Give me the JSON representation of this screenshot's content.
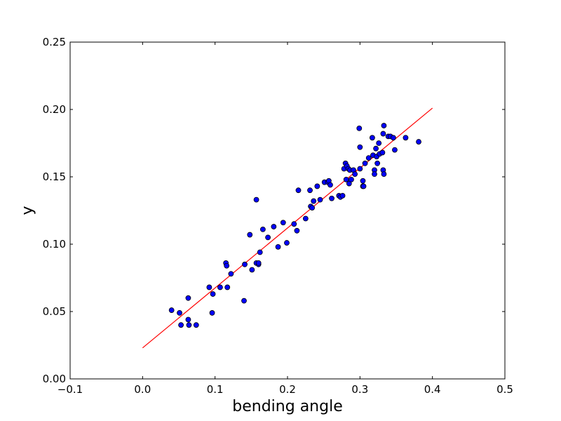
{
  "chart_data": {
    "type": "scatter",
    "title": "",
    "xlabel": "bending angle",
    "ylabel": "y",
    "xlim": [
      -0.1,
      0.5
    ],
    "ylim": [
      0.0,
      0.25
    ],
    "xticks": [
      -0.1,
      0.0,
      0.1,
      0.2,
      0.3,
      0.4,
      0.5
    ],
    "yticks": [
      0.0,
      0.05,
      0.1,
      0.15,
      0.2,
      0.25
    ],
    "xtick_labels": [
      "−0.1",
      "0.0",
      "0.1",
      "0.2",
      "0.3",
      "0.4",
      "0.5"
    ],
    "ytick_labels": [
      "0.00",
      "0.05",
      "0.10",
      "0.15",
      "0.20",
      "0.25"
    ],
    "grid": false,
    "legend": "none",
    "marker_color": "#0000ff",
    "fit_line_color": "#ff0000",
    "fit_line": {
      "x": [
        0.0,
        0.4
      ],
      "y": [
        0.023,
        0.201
      ]
    },
    "points": {
      "x": [
        0.04,
        0.051,
        0.053,
        0.063,
        0.063,
        0.064,
        0.074,
        0.092,
        0.096,
        0.097,
        0.107,
        0.115,
        0.116,
        0.117,
        0.122,
        0.14,
        0.141,
        0.148,
        0.151,
        0.157,
        0.157,
        0.16,
        0.16,
        0.162,
        0.166,
        0.173,
        0.181,
        0.187,
        0.194,
        0.199,
        0.209,
        0.213,
        0.215,
        0.225,
        0.231,
        0.232,
        0.234,
        0.236,
        0.241,
        0.245,
        0.251,
        0.256,
        0.257,
        0.259,
        0.261,
        0.271,
        0.273,
        0.276,
        0.278,
        0.28,
        0.281,
        0.282,
        0.284,
        0.285,
        0.286,
        0.288,
        0.291,
        0.293,
        0.299,
        0.3,
        0.3,
        0.304,
        0.304,
        0.305,
        0.307,
        0.312,
        0.317,
        0.318,
        0.32,
        0.32,
        0.322,
        0.323,
        0.324,
        0.326,
        0.327,
        0.331,
        0.332,
        0.332,
        0.333,
        0.333,
        0.339,
        0.342,
        0.346,
        0.348,
        0.363,
        0.381
      ],
      "y": [
        0.051,
        0.049,
        0.04,
        0.06,
        0.044,
        0.04,
        0.04,
        0.068,
        0.049,
        0.063,
        0.068,
        0.086,
        0.084,
        0.068,
        0.078,
        0.058,
        0.085,
        0.107,
        0.081,
        0.133,
        0.086,
        0.085,
        0.086,
        0.094,
        0.111,
        0.105,
        0.113,
        0.098,
        0.116,
        0.101,
        0.115,
        0.11,
        0.14,
        0.119,
        0.14,
        0.128,
        0.127,
        0.132,
        0.143,
        0.133,
        0.146,
        0.146,
        0.147,
        0.144,
        0.134,
        0.136,
        0.135,
        0.136,
        0.156,
        0.16,
        0.148,
        0.158,
        0.156,
        0.145,
        0.155,
        0.148,
        0.155,
        0.152,
        0.186,
        0.172,
        0.156,
        0.147,
        0.143,
        0.143,
        0.16,
        0.164,
        0.179,
        0.166,
        0.155,
        0.152,
        0.171,
        0.165,
        0.16,
        0.175,
        0.167,
        0.168,
        0.182,
        0.155,
        0.152,
        0.188,
        0.18,
        0.18,
        0.179,
        0.17,
        0.179,
        0.176
      ]
    }
  }
}
